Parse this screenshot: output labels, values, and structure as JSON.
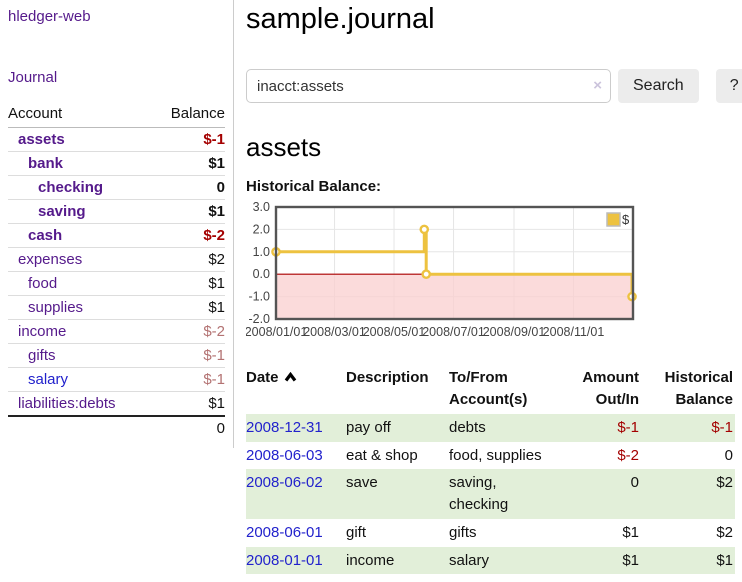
{
  "colors": {
    "link_purple": "#551a8b",
    "link_blue": "#2222cc",
    "negative": "#a40000",
    "negative_muted": "#b37272",
    "row_stripe_green": "#e2efd9",
    "chart_line": "#edc240"
  },
  "sidebar": {
    "app_title": "hledger-web",
    "journal_link": "Journal",
    "accounts_table": {
      "account_header": "Account",
      "balance_header": "Balance",
      "rows": [
        {
          "name": "assets",
          "indent": 0,
          "bold": true,
          "balance": "$-1",
          "negative": true,
          "unvisited": false
        },
        {
          "name": "bank",
          "indent": 1,
          "bold": true,
          "balance": "$1",
          "negative": false,
          "unvisited": false
        },
        {
          "name": "checking",
          "indent": 2,
          "bold": true,
          "balance": "0",
          "negative": false,
          "unvisited": false
        },
        {
          "name": "saving",
          "indent": 2,
          "bold": true,
          "balance": "$1",
          "negative": false,
          "unvisited": false
        },
        {
          "name": "cash",
          "indent": 1,
          "bold": true,
          "balance": "$-2",
          "negative": true,
          "unvisited": false
        },
        {
          "name": "expenses",
          "indent": 0,
          "bold": false,
          "balance": "$2",
          "negative": false,
          "unvisited": false
        },
        {
          "name": "food",
          "indent": 1,
          "bold": false,
          "balance": "$1",
          "negative": false,
          "unvisited": false
        },
        {
          "name": "supplies",
          "indent": 1,
          "bold": false,
          "balance": "$1",
          "negative": false,
          "unvisited": false
        },
        {
          "name": "income",
          "indent": 0,
          "bold": false,
          "balance": "$-2",
          "negative": true,
          "unvisited": false
        },
        {
          "name": "gifts",
          "indent": 1,
          "bold": false,
          "balance": "$-1",
          "negative": true,
          "unvisited": false
        },
        {
          "name": "salary",
          "indent": 1,
          "bold": false,
          "balance": "$-1",
          "negative": true,
          "unvisited": true
        },
        {
          "name": "liabilities:debts",
          "indent": 0,
          "bold": false,
          "balance": "$1",
          "negative": false,
          "unvisited": false
        }
      ],
      "total": "0"
    }
  },
  "header": {
    "title": "sample.journal"
  },
  "search": {
    "query": "inacct:assets",
    "clear_icon": "×",
    "button_label": "Search",
    "help_label": "?"
  },
  "account_page": {
    "heading": "assets",
    "chart_label": "Historical Balance:"
  },
  "chart_data": {
    "type": "line",
    "step": true,
    "title": "Historical Balance",
    "series": [
      {
        "name": "$",
        "color": "#edc240",
        "points": [
          [
            "2008-01-01",
            1.0
          ],
          [
            "2008-06-01",
            2.0
          ],
          [
            "2008-06-03",
            0.0
          ],
          [
            "2008-12-31",
            -1.0
          ]
        ]
      }
    ],
    "x_start": "2008-01-01",
    "x_range_days": 366,
    "x_ticks": [
      "2008/01/01",
      "2008/03/01",
      "2008/05/01",
      "2008/07/01",
      "2008/09/01",
      "2008/11/01"
    ],
    "y_ticks": [
      3.0,
      2.0,
      1.0,
      0.0,
      -1.0,
      -2.0
    ],
    "ylim": [
      -2,
      3
    ],
    "grid": true,
    "legend_position": "top-right",
    "negative_region_color": "#f9cfcf",
    "zero_line_color": "#aa0000",
    "border_color": "#545454",
    "grid_color": "#e6e6e6"
  },
  "register": {
    "headers": {
      "date": "Date",
      "description": "Description",
      "accounts_line1": "To/From",
      "accounts_line2": "Account(s)",
      "amount_line1": "Amount",
      "amount_line2": "Out/In",
      "balance_line1": "Historical",
      "balance_line2": "Balance"
    },
    "rows": [
      {
        "date": "2008-12-31",
        "description": "pay off",
        "accounts": "debts",
        "amount": "$-1",
        "amount_negative": true,
        "balance": "$-1",
        "balance_negative": true,
        "green": true
      },
      {
        "date": "2008-06-03",
        "description": "eat & shop",
        "accounts": "food, supplies",
        "amount": "$-2",
        "amount_negative": true,
        "balance": "0",
        "balance_negative": false,
        "green": false
      },
      {
        "date": "2008-06-02",
        "description": "save",
        "accounts": "saving, checking",
        "amount": "0",
        "amount_negative": false,
        "balance": "$2",
        "balance_negative": false,
        "green": true
      },
      {
        "date": "2008-06-01",
        "description": "gift",
        "accounts": "gifts",
        "amount": "$1",
        "amount_negative": false,
        "balance": "$2",
        "balance_negative": false,
        "green": false
      },
      {
        "date": "2008-01-01",
        "description": "income",
        "accounts": "salary",
        "amount": "$1",
        "amount_negative": false,
        "balance": "$1",
        "balance_negative": false,
        "green": true
      }
    ]
  }
}
